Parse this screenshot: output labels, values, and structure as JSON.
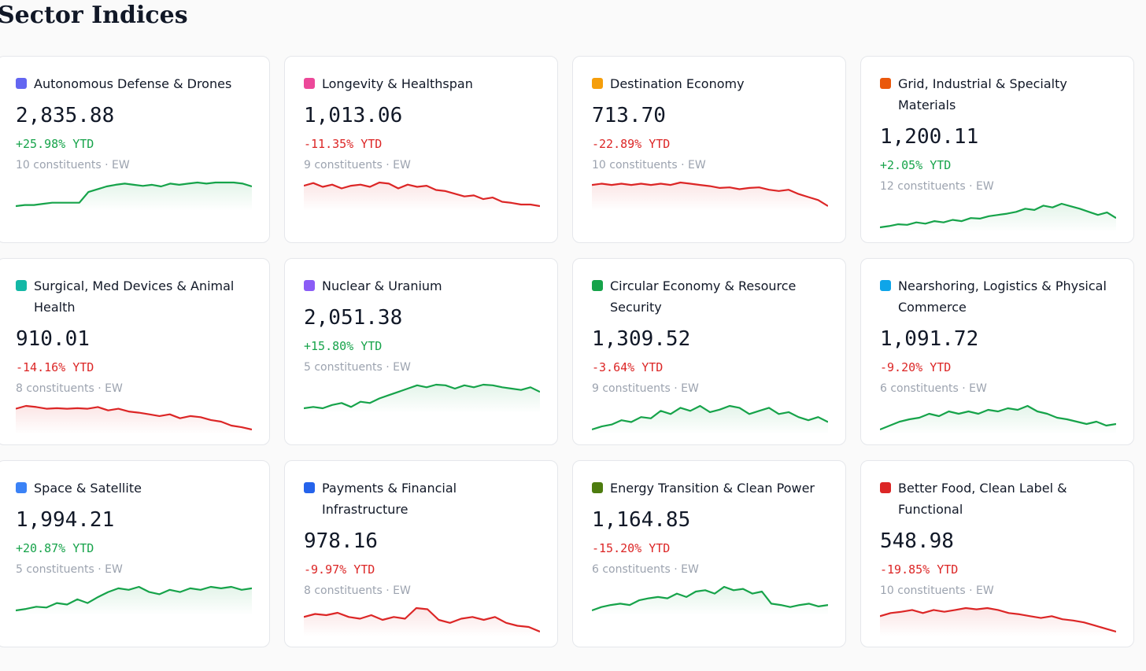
{
  "header": {
    "title": "Sector Indices"
  },
  "cards": [
    {
      "name": "Autonomous Defense & Drones",
      "color": "#6366f1",
      "value": "2,835.88",
      "ytd": "+25.98% YTD",
      "trend_color": "#16a34a",
      "meta": "10 constituents · EW",
      "spark": [
        20,
        22,
        22,
        24,
        26,
        26,
        26,
        26,
        45,
        50,
        55,
        58,
        60,
        58,
        56,
        58,
        55,
        60,
        58,
        60,
        62,
        60,
        62,
        62,
        62,
        60,
        55
      ]
    },
    {
      "name": "Longevity & Healthspan",
      "color": "#ec4899",
      "value": "1,013.06",
      "ytd": "-11.35% YTD",
      "trend_color": "#dc2626",
      "meta": "9 constituents · EW",
      "spark": [
        60,
        65,
        58,
        62,
        55,
        60,
        62,
        58,
        66,
        64,
        55,
        62,
        58,
        60,
        52,
        50,
        45,
        40,
        42,
        35,
        38,
        30,
        28,
        25,
        25,
        22
      ]
    },
    {
      "name": "Destination Economy",
      "color": "#f59e0b",
      "value": "713.70",
      "ytd": "-22.89% YTD",
      "trend_color": "#dc2626",
      "meta": "10 constituents · EW",
      "spark": [
        60,
        62,
        60,
        62,
        60,
        62,
        60,
        62,
        60,
        64,
        62,
        60,
        58,
        55,
        56,
        53,
        55,
        56,
        52,
        50,
        52,
        45,
        40,
        35,
        25
      ]
    },
    {
      "name": "Grid, Industrial & Specialty Materials",
      "color": "#ea580c",
      "value": "1,200.11",
      "ytd": "+2.05% YTD",
      "trend_color": "#16a34a",
      "meta": "12 constituents · EW",
      "spark": [
        20,
        22,
        25,
        24,
        28,
        26,
        30,
        28,
        32,
        30,
        35,
        34,
        38,
        40,
        42,
        45,
        50,
        48,
        55,
        52,
        58,
        54,
        50,
        45,
        40,
        44,
        35
      ]
    },
    {
      "name": "Surgical, Med Devices & Animal Health",
      "color": "#14b8a6",
      "value": "910.01",
      "ytd": "-14.16% YTD",
      "trend_color": "#dc2626",
      "meta": "8 constituents · EW",
      "spark": [
        55,
        60,
        58,
        55,
        56,
        55,
        56,
        55,
        58,
        52,
        55,
        50,
        48,
        45,
        42,
        45,
        38,
        42,
        40,
        35,
        32,
        25,
        22,
        18
      ]
    },
    {
      "name": "Nuclear & Uranium",
      "color": "#8b5cf6",
      "value": "2,051.38",
      "ytd": "+15.80% YTD",
      "trend_color": "#16a34a",
      "meta": "5 constituents · EW",
      "spark": [
        20,
        22,
        20,
        25,
        28,
        22,
        30,
        28,
        35,
        40,
        45,
        50,
        55,
        52,
        56,
        55,
        50,
        55,
        52,
        56,
        55,
        52,
        50,
        48,
        52,
        45
      ]
    },
    {
      "name": "Circular Economy & Resource Security",
      "color": "#16a34a",
      "value": "1,309.52",
      "ytd": "-3.64% YTD",
      "trend_color": "#16a34a",
      "meta": "9 constituents · EW",
      "spark": [
        10,
        15,
        18,
        25,
        22,
        30,
        28,
        40,
        35,
        45,
        40,
        48,
        38,
        42,
        48,
        45,
        35,
        40,
        45,
        35,
        38,
        30,
        25,
        30,
        22
      ]
    },
    {
      "name": "Nearshoring, Logistics & Physical Commerce",
      "color": "#0ea5e9",
      "value": "1,091.72",
      "ytd": "-9.20% YTD",
      "trend_color": "#16a34a",
      "meta": "6 constituents · EW",
      "spark": [
        15,
        20,
        25,
        28,
        30,
        35,
        32,
        38,
        35,
        38,
        35,
        40,
        38,
        42,
        40,
        45,
        38,
        35,
        30,
        28,
        25,
        22,
        25,
        20,
        22
      ]
    },
    {
      "name": "Space & Satellite",
      "color": "#3b82f6",
      "value": "1,994.21",
      "ytd": "+20.87% YTD",
      "trend_color": "#16a34a",
      "meta": "5 constituents · EW",
      "spark": [
        20,
        22,
        25,
        24,
        30,
        28,
        35,
        30,
        38,
        45,
        50,
        48,
        52,
        45,
        42,
        48,
        45,
        50,
        48,
        52,
        50,
        52,
        48,
        50
      ]
    },
    {
      "name": "Payments & Financial Infrastructure",
      "color": "#2563eb",
      "value": "978.16",
      "ytd": "-9.97% YTD",
      "trend_color": "#dc2626",
      "meta": "8 constituents · EW",
      "spark": [
        45,
        50,
        48,
        52,
        45,
        42,
        48,
        40,
        45,
        42,
        60,
        58,
        40,
        35,
        42,
        45,
        40,
        45,
        35,
        30,
        28,
        20
      ]
    },
    {
      "name": "Energy Transition & Clean Power",
      "color": "#4d7c0f",
      "value": "1,164.85",
      "ytd": "-15.20% YTD",
      "trend_color": "#16a34a",
      "meta": "6 constituents · EW",
      "spark": [
        30,
        35,
        38,
        40,
        38,
        45,
        48,
        50,
        48,
        55,
        50,
        58,
        60,
        55,
        65,
        60,
        62,
        55,
        58,
        40,
        38,
        35,
        38,
        40,
        36,
        38
      ]
    },
    {
      "name": "Better Food, Clean Label & Functional",
      "color": "#dc2626",
      "value": "548.98",
      "ytd": "-19.85% YTD",
      "trend_color": "#dc2626",
      "meta": "10 constituents · EW",
      "spark": [
        45,
        50,
        52,
        55,
        50,
        55,
        52,
        55,
        58,
        56,
        58,
        55,
        50,
        48,
        45,
        42,
        45,
        40,
        38,
        35,
        30,
        25,
        20
      ]
    }
  ]
}
